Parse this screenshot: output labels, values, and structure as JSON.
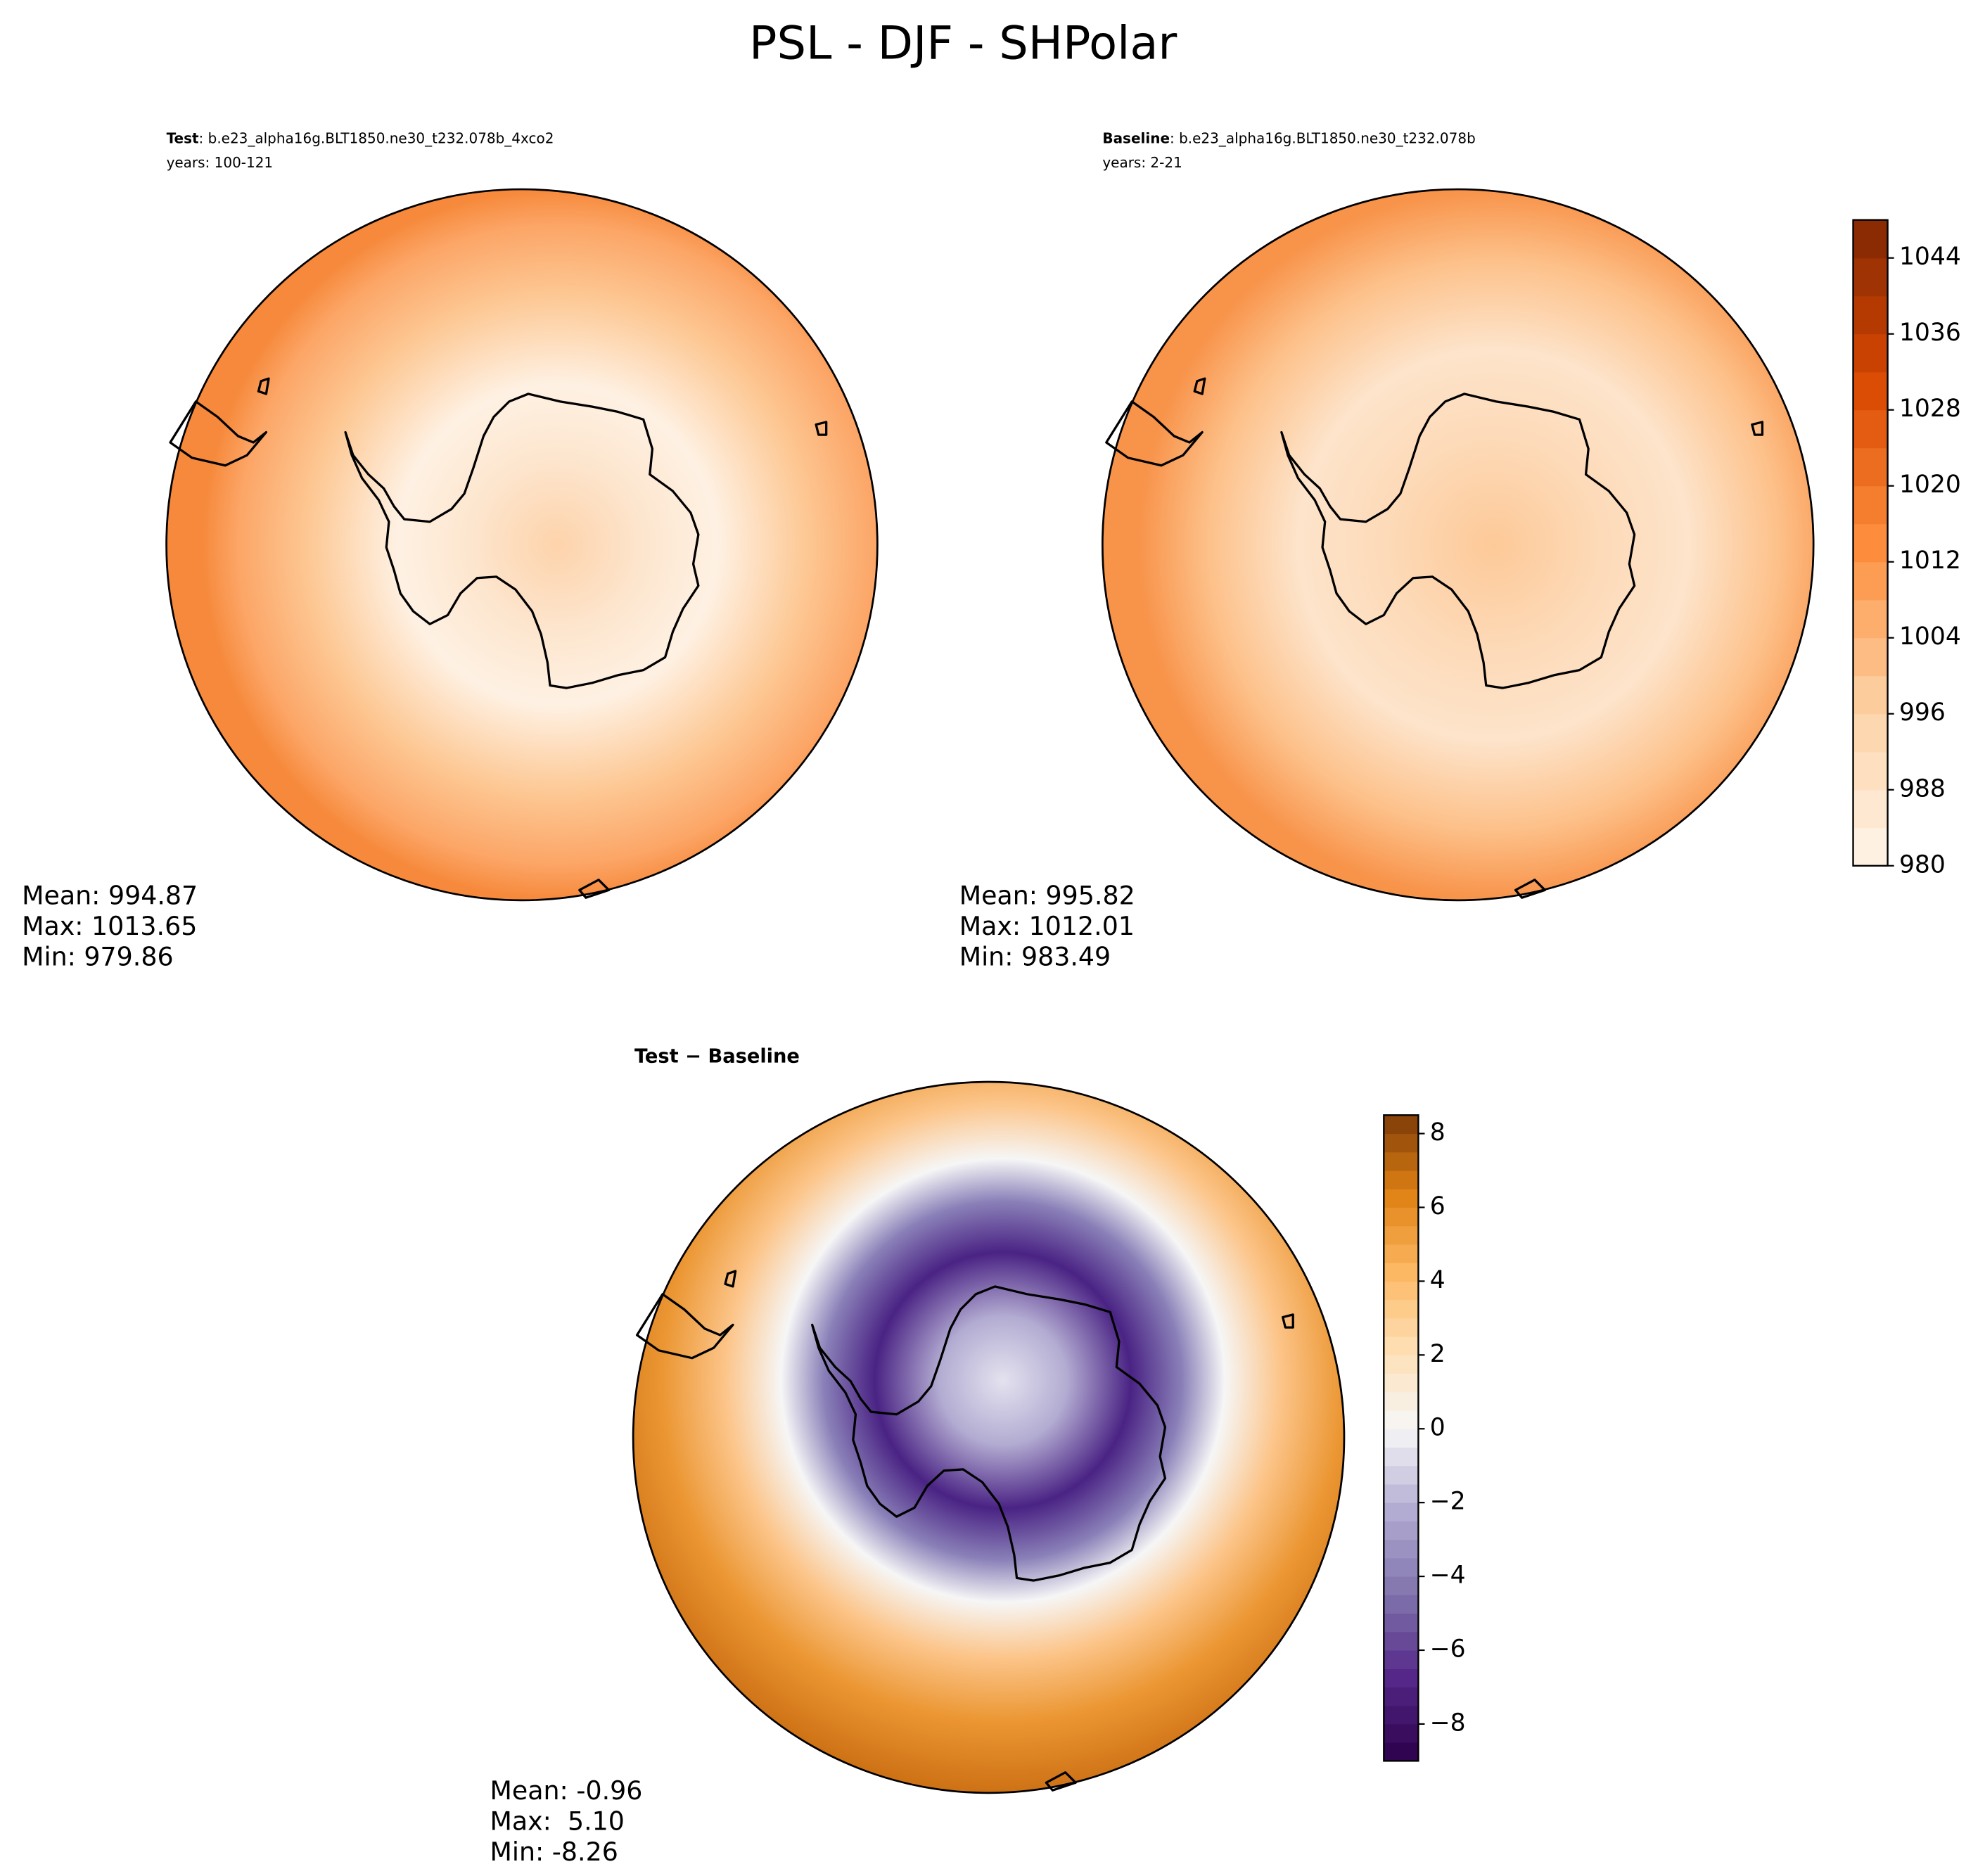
{
  "title": "PSL - DJF - SHPolar",
  "panels": [
    {
      "label_bold": "Test",
      "label": ": b.e23_alpha16g.BLT1850.ne30_t232.078b_4xco2",
      "years": "years: 100-121",
      "stats": [
        "Mean: 994.87",
        "Max: 1013.65",
        "Min: 979.86"
      ]
    },
    {
      "label_bold": "Baseline",
      "label": ": b.e23_alpha16g.BLT1850.ne30_t232.078b",
      "years": "years: 2-21",
      "stats": [
        "Mean: 995.82",
        "Max: 1012.01",
        "Min: 983.49"
      ]
    },
    {
      "label_bold": "Test − Baseline",
      "stats": [
        "Mean: -0.96",
        "Max:  5.10",
        "Min: -8.26"
      ]
    }
  ],
  "colorbars": [
    {
      "lim": [
        980,
        1048
      ],
      "ticks": [
        980,
        988,
        996,
        1004,
        1012,
        1020,
        1028,
        1036,
        1044
      ]
    },
    {
      "lim": [
        -9,
        8.5
      ],
      "ticks": [
        {
          "value": -8,
          "label": "−8"
        },
        {
          "value": -6,
          "label": "−6"
        },
        {
          "value": -4,
          "label": "−4"
        },
        {
          "value": -2,
          "label": "−2"
        },
        0,
        2,
        4,
        6,
        8
      ]
    }
  ]
}
